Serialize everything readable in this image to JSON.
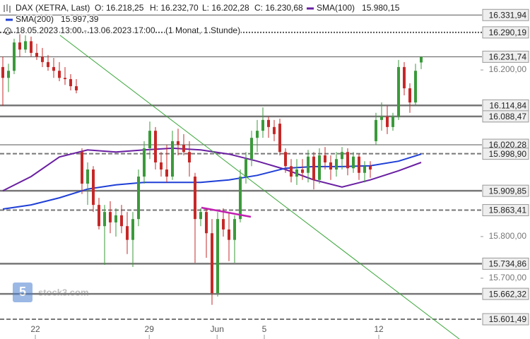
{
  "chart_data": {
    "type": "candlestick",
    "title": "DAX (XETRA, Last)",
    "ohlc_labels": [
      "O: 16.218,25",
      "H: 16.232,70",
      "L: 16.202,28",
      "C: 16.230,68"
    ],
    "period": "18.05.2023 13:00 - 13.06.2023 17:00",
    "interval": "(1 Monat, 1 Stunde)",
    "watermark": "stock3.com",
    "up_color": "#3a9a3a",
    "down_color": "#c62828",
    "open": [
      16207,
      16181,
      16198,
      16266,
      16249,
      16269,
      16241,
      16232,
      16219,
      16207,
      16198,
      16181,
      16178,
      16161,
      16003,
      15927,
      15961,
      15876,
      15825,
      15859,
      15834,
      15851,
      15825,
      15792,
      15842,
      15944,
      16012,
      16054,
      15978,
      15961,
      15944,
      16029,
      16020,
      16003,
      15944,
      15842,
      15859,
      15808,
      15664,
      15842,
      15817,
      15792,
      15842,
      15944,
      15986,
      16037,
      16054,
      16080,
      16063,
      16071,
      16003,
      15969,
      15944,
      15961,
      15953,
      15992,
      15936,
      15995,
      15978,
      15961,
      15986,
      16003,
      15964,
      15992,
      15953,
      15969,
      16029,
      16080,
      16088,
      16063,
      16088,
      16207,
      16156,
      16122,
      16218
    ],
    "high": [
      16232,
      16215,
      16275,
      16292,
      16283,
      16280,
      16263,
      16253,
      16236,
      16229,
      16219,
      16207,
      16190,
      16178,
      16012,
      15978,
      15969,
      15893,
      15876,
      15885,
      15868,
      15876,
      15859,
      15859,
      15961,
      16029,
      16076,
      16063,
      16003,
      16020,
      16054,
      16059,
      16046,
      16029,
      15953,
      15868,
      15868,
      15842,
      15859,
      15868,
      15859,
      15851,
      15961,
      16003,
      16054,
      16080,
      16110,
      16088,
      16080,
      16083,
      16012,
      15986,
      15986,
      15986,
      16008,
      16003,
      16012,
      16015,
      15995,
      16003,
      16015,
      16012,
      16003,
      15998,
      15981,
      15981,
      16097,
      16122,
      16114,
      16097,
      16224,
      16219,
      16168,
      16215,
      16233
    ],
    "low": [
      16114,
      16147,
      16190,
      16232,
      16241,
      16232,
      16224,
      16207,
      16198,
      16181,
      16173,
      16164,
      16151,
      16144,
      15902,
      15876,
      15859,
      15817,
      15732,
      15808,
      15800,
      15808,
      15758,
      15727,
      15825,
      15927,
      15986,
      15961,
      15944,
      15930,
      15936,
      15995,
      15995,
      15944,
      15737,
      15825,
      15749,
      15636,
      15656,
      15800,
      15741,
      15737,
      15834,
      15927,
      15969,
      16003,
      16037,
      16037,
      16029,
      15995,
      15953,
      15930,
      15924,
      15936,
      15930,
      15913,
      15927,
      15961,
      15936,
      15944,
      15961,
      15947,
      15953,
      15936,
      15930,
      15941,
      16020,
      16054,
      16046,
      16054,
      16080,
      16139,
      16097,
      16114,
      16202
    ],
    "close": [
      16181,
      16198,
      16266,
      16249,
      16269,
      16241,
      16232,
      16219,
      16207,
      16198,
      16181,
      16178,
      16161,
      16151,
      15927,
      15961,
      15876,
      15825,
      15859,
      15834,
      15851,
      15825,
      15792,
      15842,
      15944,
      16012,
      16054,
      15978,
      15961,
      15944,
      16029,
      16020,
      16003,
      15978,
      15842,
      15859,
      15808,
      15664,
      15842,
      15817,
      15792,
      15842,
      15944,
      15986,
      16037,
      16054,
      16080,
      16063,
      16046,
      16003,
      15969,
      15944,
      15961,
      15953,
      15992,
      15936,
      15995,
      15978,
      15961,
      15986,
      16003,
      15964,
      15992,
      15953,
      15969,
      15961,
      16080,
      16088,
      16063,
      16088,
      16207,
      16156,
      16122,
      16198,
      16231
    ],
    "series": [
      {
        "name": "SMA(100)",
        "last_label": "15.980,15",
        "color": "#6a1fa2",
        "x": [
          0,
          5,
          10,
          15,
          20,
          25,
          30,
          35,
          40,
          45,
          50,
          55,
          60,
          65,
          70,
          74
        ],
        "values": [
          15910,
          15944,
          15991,
          16008,
          16003,
          16008,
          16012,
          16008,
          15998,
          15981,
          15961,
          15936,
          15919,
          15936,
          15958,
          15978
        ]
      },
      {
        "name": "SMA(200)",
        "last_label": "15.997,39",
        "color": "#1f3fd6",
        "x": [
          0,
          5,
          10,
          15,
          20,
          25,
          30,
          35,
          40,
          45,
          50,
          55,
          60,
          65,
          70,
          74
        ],
        "values": [
          15866,
          15876,
          15893,
          15914,
          15924,
          15930,
          15930,
          15930,
          15936,
          15947,
          15964,
          15968,
          15968,
          15970,
          15981,
          15998
        ]
      }
    ],
    "levels": [
      {
        "value": 16331.94,
        "label": "16.331,94",
        "style": "thin"
      },
      {
        "value": 16290.19,
        "label": "16.290,19",
        "style": "dotted"
      },
      {
        "value": 16231.74,
        "label": "16.231,74",
        "style": "thin"
      },
      {
        "value": 16114.84,
        "label": "16.114,84",
        "style": "thick"
      },
      {
        "value": 16088.47,
        "label": "16.088,47",
        "style": "thick"
      },
      {
        "value": 16020.28,
        "label": "16.020,28",
        "style": "thin"
      },
      {
        "value": 15998.9,
        "label": "15.998,90",
        "style": "dashed"
      },
      {
        "value": 15909.85,
        "label": "15.909,85",
        "style": "thick"
      },
      {
        "value": 15863.41,
        "label": "15.863,41",
        "style": "dashed"
      },
      {
        "value": 15734.86,
        "label": "15.734,86",
        "style": "thick"
      },
      {
        "value": 15662.32,
        "label": "15.662,32",
        "style": "thick"
      },
      {
        "value": 15601.49,
        "label": "15.601,49",
        "style": "dashed"
      }
    ],
    "ylim": [
      15554,
      16368
    ],
    "yticks": [
      {
        "value": 16200,
        "label": "16.200,00"
      },
      {
        "value": 15800,
        "label": "15.800,00"
      },
      {
        "value": 15700,
        "label": "15.700,00"
      }
    ],
    "xlim": [
      -0.5,
      84.5
    ],
    "xticks": [
      {
        "value": 5.75,
        "label": "22"
      },
      {
        "value": 25.9,
        "label": "29"
      },
      {
        "value": 37.9,
        "label": "Jun"
      },
      {
        "value": 46.25,
        "label": "5"
      },
      {
        "value": 66.5,
        "label": "12"
      }
    ]
  }
}
